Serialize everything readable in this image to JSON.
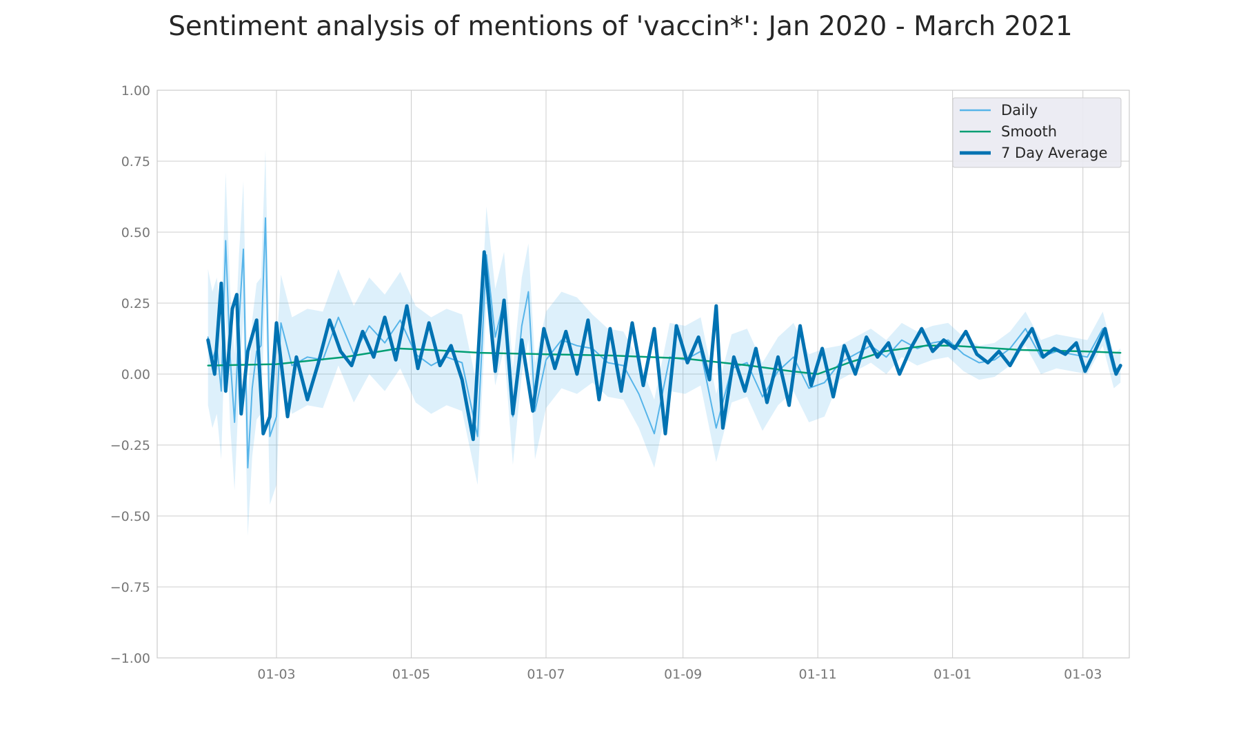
{
  "chart_data": {
    "type": "line",
    "title": "Sentiment analysis of mentions of 'vaccin*': Jan 2020 - March 2021",
    "xlabel": "",
    "ylabel": "",
    "x_range": [
      "2020-01-07",
      "2021-03-22"
    ],
    "x_tick_dates": [
      "2020-03-01",
      "2020-05-01",
      "2020-07-01",
      "2020-09-01",
      "2020-11-01",
      "2021-01-01",
      "2021-03-01"
    ],
    "x_tick_labels": [
      "01-03",
      "01-05",
      "01-07",
      "01-09",
      "01-11",
      "01-01",
      "01-03"
    ],
    "ylim": [
      -1.0,
      1.0
    ],
    "y_ticks": [
      1.0,
      0.75,
      0.5,
      0.25,
      0.0,
      -0.25,
      -0.5,
      -0.75,
      -1.0
    ],
    "y_tick_labels": [
      "1.00",
      "0.75",
      "0.50",
      "0.25",
      "0.00",
      "−0.25",
      "−0.50",
      "−0.75",
      "−1.00"
    ],
    "grid": true,
    "legend_position": "top-right",
    "series": [
      {
        "name": "Daily",
        "color": "#56b4e9",
        "line_width": 2,
        "points": [
          [
            "2020-01-30",
            0.13
          ],
          [
            "2020-02-01",
            0.05
          ],
          [
            "2020-02-03",
            0.1
          ],
          [
            "2020-02-05",
            -0.06
          ],
          [
            "2020-02-07",
            0.47
          ],
          [
            "2020-02-09",
            0.06
          ],
          [
            "2020-02-11",
            -0.17
          ],
          [
            "2020-02-13",
            0.18
          ],
          [
            "2020-02-15",
            0.44
          ],
          [
            "2020-02-17",
            -0.33
          ],
          [
            "2020-02-19",
            -0.05
          ],
          [
            "2020-02-21",
            0.08
          ],
          [
            "2020-02-23",
            0.1
          ],
          [
            "2020-02-25",
            0.55
          ],
          [
            "2020-02-27",
            -0.22
          ],
          [
            "2020-03-01",
            -0.15
          ],
          [
            "2020-03-03",
            0.18
          ],
          [
            "2020-03-08",
            0.03
          ],
          [
            "2020-03-15",
            0.06
          ],
          [
            "2020-03-22",
            0.05
          ],
          [
            "2020-03-29",
            0.2
          ],
          [
            "2020-04-05",
            0.07
          ],
          [
            "2020-04-12",
            0.17
          ],
          [
            "2020-04-19",
            0.11
          ],
          [
            "2020-04-26",
            0.19
          ],
          [
            "2020-05-03",
            0.07
          ],
          [
            "2020-05-10",
            0.03
          ],
          [
            "2020-05-17",
            0.06
          ],
          [
            "2020-05-24",
            0.04
          ],
          [
            "2020-05-31",
            -0.22
          ],
          [
            "2020-06-04",
            0.42
          ],
          [
            "2020-06-08",
            0.13
          ],
          [
            "2020-06-12",
            0.26
          ],
          [
            "2020-06-16",
            -0.15
          ],
          [
            "2020-06-20",
            0.17
          ],
          [
            "2020-06-23",
            0.29
          ],
          [
            "2020-06-26",
            -0.13
          ],
          [
            "2020-07-01",
            0.05
          ],
          [
            "2020-07-08",
            0.12
          ],
          [
            "2020-07-15",
            0.1
          ],
          [
            "2020-07-22",
            0.09
          ],
          [
            "2020-07-29",
            0.04
          ],
          [
            "2020-08-05",
            0.03
          ],
          [
            "2020-08-12",
            -0.07
          ],
          [
            "2020-08-19",
            -0.21
          ],
          [
            "2020-08-26",
            0.06
          ],
          [
            "2020-09-02",
            0.05
          ],
          [
            "2020-09-09",
            0.08
          ],
          [
            "2020-09-16",
            -0.19
          ],
          [
            "2020-09-23",
            0.02
          ],
          [
            "2020-09-30",
            0.04
          ],
          [
            "2020-10-07",
            -0.08
          ],
          [
            "2020-10-14",
            0.01
          ],
          [
            "2020-10-21",
            0.06
          ],
          [
            "2020-10-28",
            -0.05
          ],
          [
            "2020-11-04",
            -0.03
          ],
          [
            "2020-11-11",
            0.04
          ],
          [
            "2020-11-18",
            0.07
          ],
          [
            "2020-11-25",
            0.1
          ],
          [
            "2020-12-02",
            0.06
          ],
          [
            "2020-12-09",
            0.12
          ],
          [
            "2020-12-16",
            0.09
          ],
          [
            "2020-12-23",
            0.11
          ],
          [
            "2020-12-30",
            0.12
          ],
          [
            "2021-01-06",
            0.07
          ],
          [
            "2021-01-13",
            0.04
          ],
          [
            "2021-01-20",
            0.05
          ],
          [
            "2021-01-27",
            0.09
          ],
          [
            "2021-02-03",
            0.16
          ],
          [
            "2021-02-10",
            0.06
          ],
          [
            "2021-02-17",
            0.08
          ],
          [
            "2021-02-24",
            0.07
          ],
          [
            "2021-03-03",
            0.06
          ],
          [
            "2021-03-10",
            0.16
          ],
          [
            "2021-03-15",
            0.01
          ],
          [
            "2021-03-18",
            0.03
          ]
        ]
      },
      {
        "name": "Smooth",
        "color": "#009e73",
        "line_width": 2.5,
        "points": [
          [
            "2020-01-30",
            0.03
          ],
          [
            "2020-03-01",
            0.035
          ],
          [
            "2020-04-01",
            0.06
          ],
          [
            "2020-04-25",
            0.09
          ],
          [
            "2020-05-10",
            0.085
          ],
          [
            "2020-06-01",
            0.075
          ],
          [
            "2020-07-01",
            0.07
          ],
          [
            "2020-08-01",
            0.065
          ],
          [
            "2020-09-01",
            0.055
          ],
          [
            "2020-10-01",
            0.03
          ],
          [
            "2020-10-20",
            0.01
          ],
          [
            "2020-11-01",
            0.0
          ],
          [
            "2020-11-15",
            0.04
          ],
          [
            "2020-12-01",
            0.08
          ],
          [
            "2020-12-20",
            0.1
          ],
          [
            "2021-01-01",
            0.1
          ],
          [
            "2021-02-01",
            0.085
          ],
          [
            "2021-03-01",
            0.08
          ],
          [
            "2021-03-18",
            0.075
          ]
        ]
      },
      {
        "name": "7 Day Average",
        "color": "#0072b2",
        "line_width": 5,
        "points": [
          [
            "2020-01-30",
            0.12
          ],
          [
            "2020-02-02",
            0.0
          ],
          [
            "2020-02-05",
            0.32
          ],
          [
            "2020-02-07",
            -0.06
          ],
          [
            "2020-02-10",
            0.23
          ],
          [
            "2020-02-12",
            0.28
          ],
          [
            "2020-02-14",
            -0.14
          ],
          [
            "2020-02-17",
            0.08
          ],
          [
            "2020-02-21",
            0.19
          ],
          [
            "2020-02-24",
            -0.21
          ],
          [
            "2020-02-27",
            -0.15
          ],
          [
            "2020-03-01",
            0.18
          ],
          [
            "2020-03-06",
            -0.15
          ],
          [
            "2020-03-10",
            0.06
          ],
          [
            "2020-03-15",
            -0.09
          ],
          [
            "2020-03-20",
            0.04
          ],
          [
            "2020-03-25",
            0.19
          ],
          [
            "2020-03-30",
            0.08
          ],
          [
            "2020-04-04",
            0.03
          ],
          [
            "2020-04-09",
            0.15
          ],
          [
            "2020-04-14",
            0.06
          ],
          [
            "2020-04-19",
            0.2
          ],
          [
            "2020-04-24",
            0.05
          ],
          [
            "2020-04-29",
            0.24
          ],
          [
            "2020-05-04",
            0.02
          ],
          [
            "2020-05-09",
            0.18
          ],
          [
            "2020-05-14",
            0.03
          ],
          [
            "2020-05-19",
            0.1
          ],
          [
            "2020-05-24",
            -0.02
          ],
          [
            "2020-05-29",
            -0.23
          ],
          [
            "2020-06-03",
            0.43
          ],
          [
            "2020-06-08",
            0.01
          ],
          [
            "2020-06-12",
            0.26
          ],
          [
            "2020-06-16",
            -0.14
          ],
          [
            "2020-06-20",
            0.12
          ],
          [
            "2020-06-25",
            -0.13
          ],
          [
            "2020-06-30",
            0.16
          ],
          [
            "2020-07-05",
            0.02
          ],
          [
            "2020-07-10",
            0.15
          ],
          [
            "2020-07-15",
            0.0
          ],
          [
            "2020-07-20",
            0.19
          ],
          [
            "2020-07-25",
            -0.09
          ],
          [
            "2020-07-30",
            0.16
          ],
          [
            "2020-08-04",
            -0.06
          ],
          [
            "2020-08-09",
            0.18
          ],
          [
            "2020-08-14",
            -0.04
          ],
          [
            "2020-08-19",
            0.16
          ],
          [
            "2020-08-24",
            -0.21
          ],
          [
            "2020-08-29",
            0.17
          ],
          [
            "2020-09-03",
            0.04
          ],
          [
            "2020-09-08",
            0.13
          ],
          [
            "2020-09-13",
            -0.02
          ],
          [
            "2020-09-16",
            0.24
          ],
          [
            "2020-09-19",
            -0.19
          ],
          [
            "2020-09-24",
            0.06
          ],
          [
            "2020-09-29",
            -0.06
          ],
          [
            "2020-10-04",
            0.09
          ],
          [
            "2020-10-09",
            -0.1
          ],
          [
            "2020-10-14",
            0.06
          ],
          [
            "2020-10-19",
            -0.11
          ],
          [
            "2020-10-24",
            0.17
          ],
          [
            "2020-10-29",
            -0.04
          ],
          [
            "2020-11-03",
            0.09
          ],
          [
            "2020-11-08",
            -0.08
          ],
          [
            "2020-11-13",
            0.1
          ],
          [
            "2020-11-18",
            0.0
          ],
          [
            "2020-11-23",
            0.13
          ],
          [
            "2020-11-28",
            0.06
          ],
          [
            "2020-12-03",
            0.11
          ],
          [
            "2020-12-08",
            0.0
          ],
          [
            "2020-12-13",
            0.09
          ],
          [
            "2020-12-18",
            0.16
          ],
          [
            "2020-12-23",
            0.08
          ],
          [
            "2020-12-28",
            0.12
          ],
          [
            "2021-01-02",
            0.09
          ],
          [
            "2021-01-07",
            0.15
          ],
          [
            "2021-01-12",
            0.07
          ],
          [
            "2021-01-17",
            0.04
          ],
          [
            "2021-01-22",
            0.08
          ],
          [
            "2021-01-27",
            0.03
          ],
          [
            "2021-02-01",
            0.1
          ],
          [
            "2021-02-06",
            0.16
          ],
          [
            "2021-02-11",
            0.06
          ],
          [
            "2021-02-16",
            0.09
          ],
          [
            "2021-02-21",
            0.07
          ],
          [
            "2021-02-26",
            0.11
          ],
          [
            "2021-03-02",
            0.01
          ],
          [
            "2021-03-07",
            0.09
          ],
          [
            "2021-03-11",
            0.16
          ],
          [
            "2021-03-14",
            0.06
          ],
          [
            "2021-03-16",
            0.0
          ],
          [
            "2021-03-18",
            0.03
          ]
        ]
      }
    ],
    "legend": [
      "Daily",
      "Smooth",
      "7 Day Average"
    ]
  }
}
